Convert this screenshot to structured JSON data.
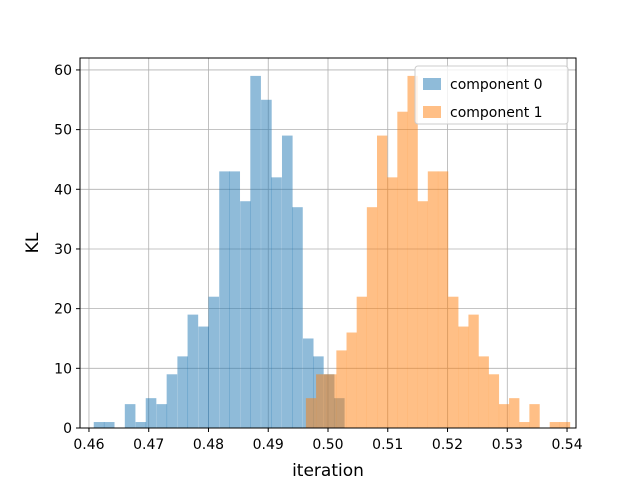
{
  "chart_data": {
    "type": "bar",
    "subtype": "overlaid-histogram",
    "xlabel": "iteration",
    "ylabel": "KL",
    "xlim": [
      0.4585,
      0.5415
    ],
    "ylim": [
      0,
      62
    ],
    "xticks": [
      0.46,
      0.47,
      0.48,
      0.49,
      0.5,
      0.51,
      0.52,
      0.53,
      0.54
    ],
    "yticks": [
      0,
      10,
      20,
      30,
      40,
      50,
      60
    ],
    "grid": true,
    "legend_position": "top-right",
    "series": [
      {
        "name": "component 0",
        "color": "#1f77b4",
        "alpha": 0.5,
        "bin_width": 0.00175,
        "bins": [
          [
            0.4608,
            1
          ],
          [
            0.4625,
            1
          ],
          [
            0.4643,
            0
          ],
          [
            0.466,
            4
          ],
          [
            0.4678,
            1
          ],
          [
            0.4695,
            5
          ],
          [
            0.4713,
            4
          ],
          [
            0.473,
            9
          ],
          [
            0.4748,
            12
          ],
          [
            0.4765,
            19
          ],
          [
            0.4783,
            17
          ],
          [
            0.48,
            22
          ],
          [
            0.4818,
            43
          ],
          [
            0.4835,
            43
          ],
          [
            0.4853,
            38
          ],
          [
            0.487,
            59
          ],
          [
            0.4888,
            55
          ],
          [
            0.4905,
            42
          ],
          [
            0.4923,
            49
          ],
          [
            0.494,
            37
          ],
          [
            0.4958,
            15
          ],
          [
            0.4975,
            12
          ],
          [
            0.4993,
            9
          ],
          [
            0.501,
            5
          ]
        ]
      },
      {
        "name": "component 1",
        "color": "#ff7f0e",
        "alpha": 0.5,
        "bin_width": 0.0017,
        "bins": [
          [
            0.4963,
            5
          ],
          [
            0.498,
            9
          ],
          [
            0.4997,
            9
          ],
          [
            0.5014,
            13
          ],
          [
            0.5031,
            16
          ],
          [
            0.5048,
            22
          ],
          [
            0.5065,
            37
          ],
          [
            0.5082,
            49
          ],
          [
            0.5099,
            42
          ],
          [
            0.5116,
            53
          ],
          [
            0.5133,
            59
          ],
          [
            0.515,
            38
          ],
          [
            0.5167,
            43
          ],
          [
            0.5184,
            43
          ],
          [
            0.5201,
            22
          ],
          [
            0.5218,
            17
          ],
          [
            0.5235,
            19
          ],
          [
            0.5252,
            12
          ],
          [
            0.5269,
            9
          ],
          [
            0.5286,
            4
          ],
          [
            0.5303,
            5
          ],
          [
            0.532,
            1
          ],
          [
            0.5337,
            4
          ],
          [
            0.5354,
            0
          ],
          [
            0.5371,
            1
          ],
          [
            0.5388,
            1
          ]
        ]
      }
    ]
  }
}
